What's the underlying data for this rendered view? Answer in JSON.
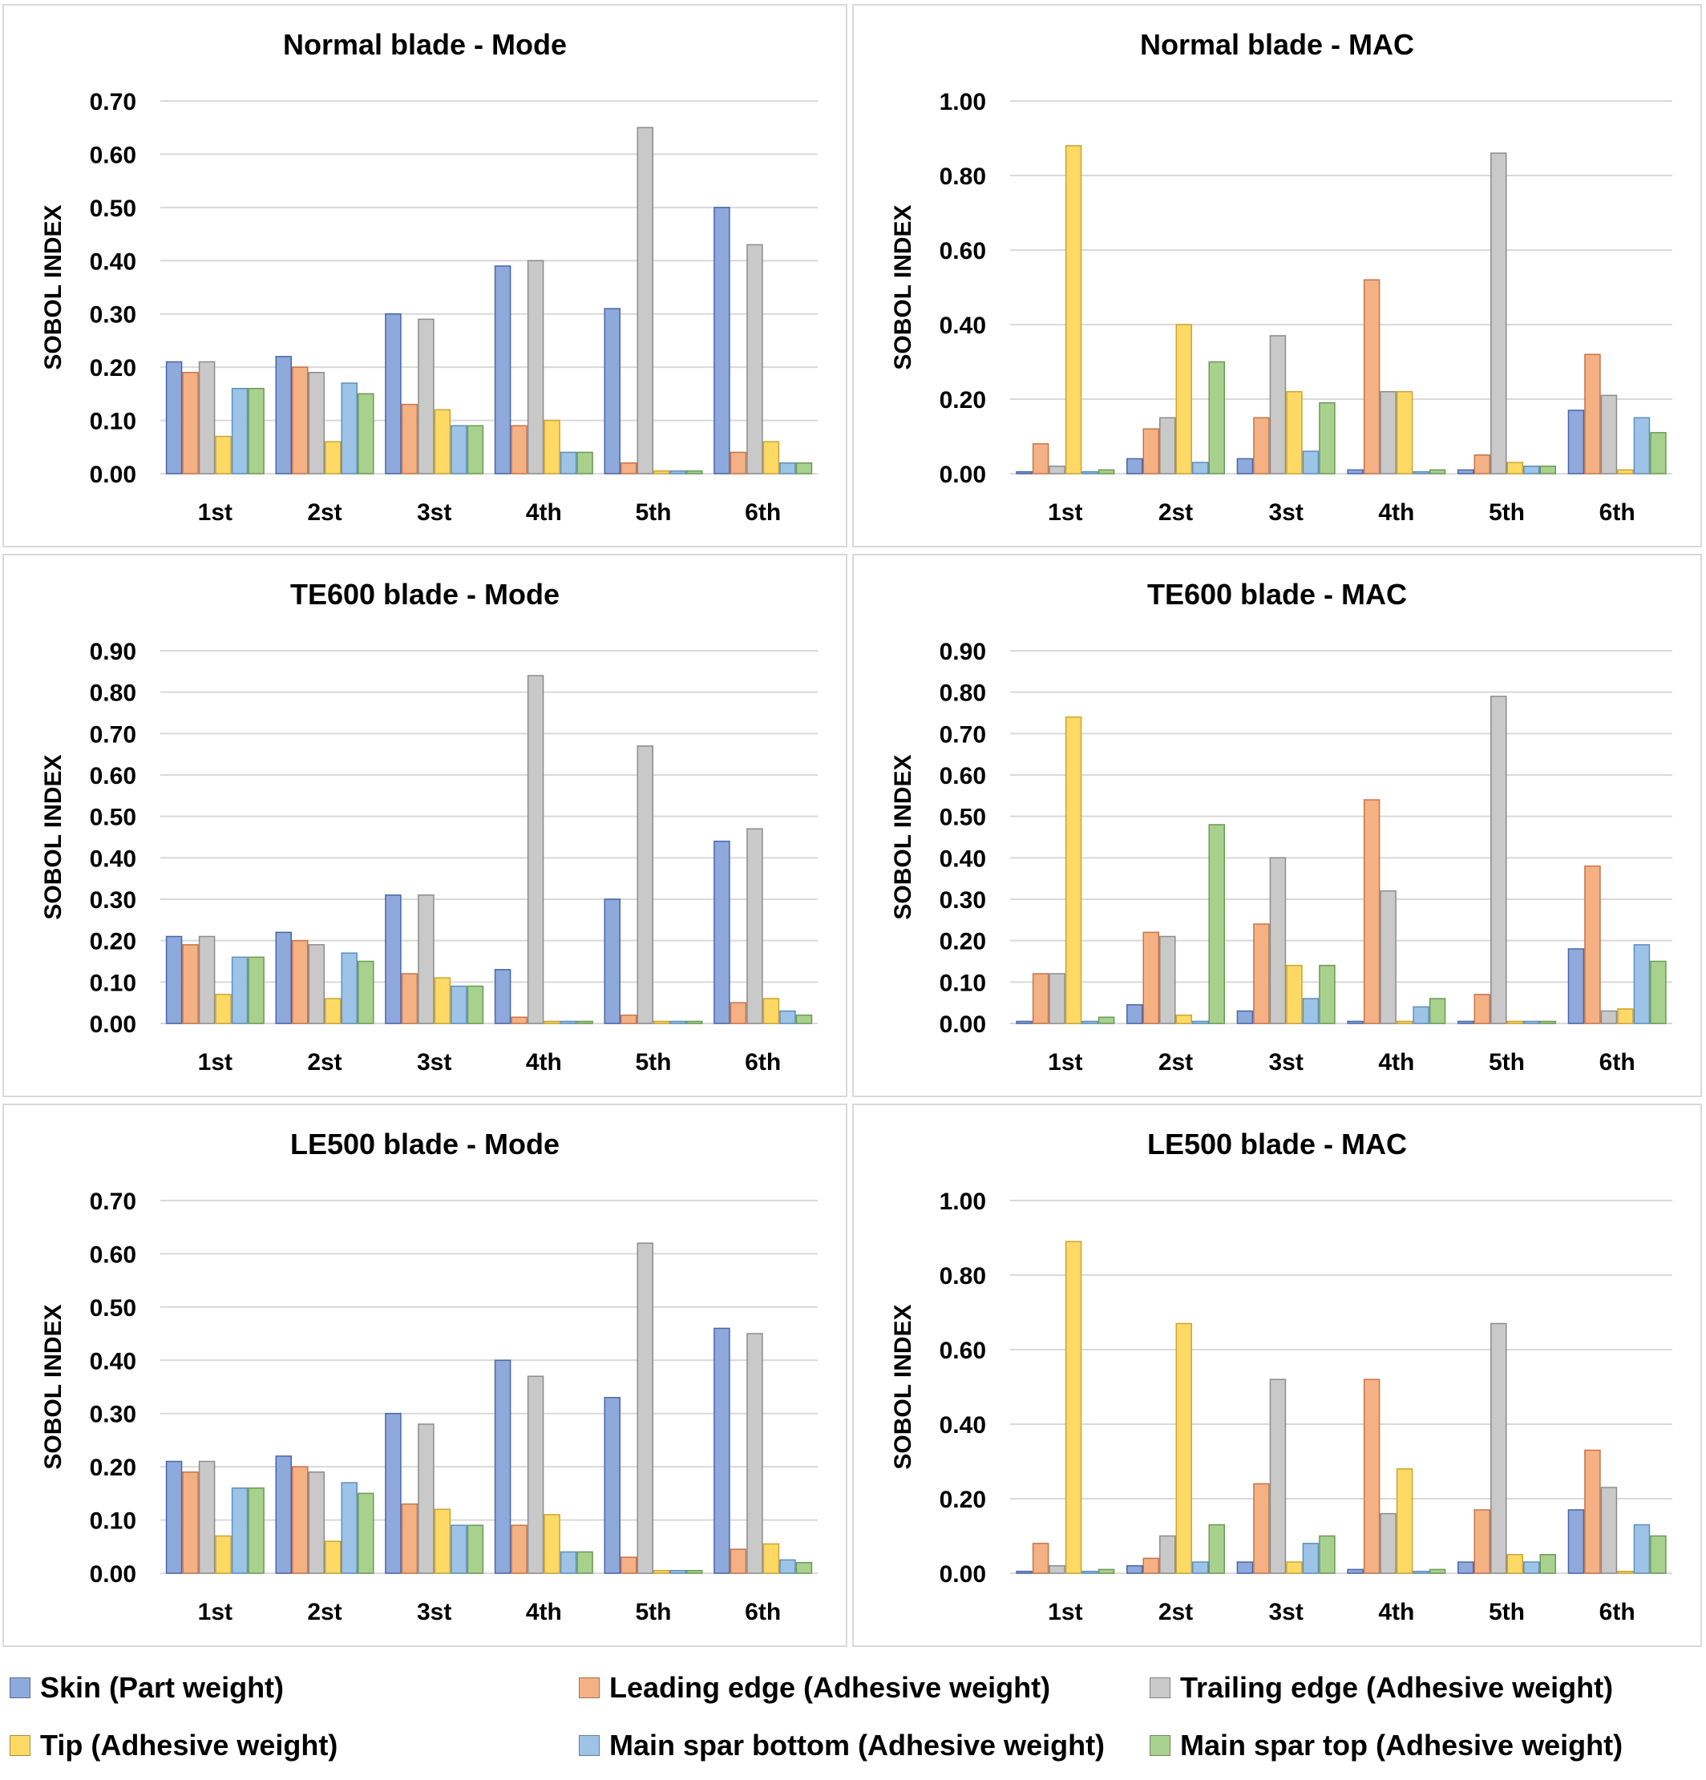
{
  "series_names": [
    "Skin (Part weight)",
    "Leading edge (Adhesive weight)",
    "Trailing edge (Adhesive weight)",
    "Tip (Adhesive weight)",
    "Main spar bottom (Adhesive weight)",
    "Main spar top (Adhesive weight)"
  ],
  "colors": [
    "#8ea9db",
    "#f4b183",
    "#c9c9c9",
    "#ffd966",
    "#9dc3e6",
    "#a9d18e"
  ],
  "chart_data": [
    {
      "type": "bar",
      "title": "Normal blade - Mode",
      "ylabel": "SOBOL INDEX",
      "categories": [
        "1st",
        "2st",
        "3st",
        "4th",
        "5th",
        "6th"
      ],
      "ylim": [
        0,
        0.7
      ],
      "yticks": [
        "0.00",
        "0.10",
        "0.20",
        "0.30",
        "0.40",
        "0.50",
        "0.60",
        "0.70"
      ],
      "series": [
        {
          "name": "Skin (Part weight)",
          "values": [
            0.21,
            0.22,
            0.3,
            0.39,
            0.31,
            0.5
          ]
        },
        {
          "name": "Leading edge (Adhesive weight)",
          "values": [
            0.19,
            0.2,
            0.13,
            0.09,
            0.02,
            0.04
          ]
        },
        {
          "name": "Trailing edge (Adhesive weight)",
          "values": [
            0.21,
            0.19,
            0.29,
            0.4,
            0.65,
            0.43
          ]
        },
        {
          "name": "Tip (Adhesive weight)",
          "values": [
            0.07,
            0.06,
            0.12,
            0.1,
            0.005,
            0.06
          ]
        },
        {
          "name": "Main spar bottom (Adhesive weight)",
          "values": [
            0.16,
            0.17,
            0.09,
            0.04,
            0.005,
            0.02
          ]
        },
        {
          "name": "Main spar top (Adhesive weight)",
          "values": [
            0.16,
            0.15,
            0.09,
            0.04,
            0.005,
            0.02
          ]
        }
      ]
    },
    {
      "type": "bar",
      "title": "Normal blade - MAC",
      "ylabel": "SOBOL INDEX",
      "categories": [
        "1st",
        "2st",
        "3st",
        "4th",
        "5th",
        "6th"
      ],
      "ylim": [
        0,
        1.0
      ],
      "yticks": [
        "0.00",
        "0.20",
        "0.40",
        "0.60",
        "0.80",
        "1.00"
      ],
      "series": [
        {
          "name": "Skin (Part weight)",
          "values": [
            0.005,
            0.04,
            0.04,
            0.01,
            0.01,
            0.17
          ]
        },
        {
          "name": "Leading edge (Adhesive weight)",
          "values": [
            0.08,
            0.12,
            0.15,
            0.52,
            0.05,
            0.32
          ]
        },
        {
          "name": "Trailing edge (Adhesive weight)",
          "values": [
            0.02,
            0.15,
            0.37,
            0.22,
            0.86,
            0.21
          ]
        },
        {
          "name": "Tip (Adhesive weight)",
          "values": [
            0.88,
            0.4,
            0.22,
            0.22,
            0.03,
            0.01
          ]
        },
        {
          "name": "Main spar bottom (Adhesive weight)",
          "values": [
            0.005,
            0.03,
            0.06,
            0.005,
            0.02,
            0.15
          ]
        },
        {
          "name": "Main spar top (Adhesive weight)",
          "values": [
            0.01,
            0.3,
            0.19,
            0.01,
            0.02,
            0.11
          ]
        }
      ]
    },
    {
      "type": "bar",
      "title": "TE600 blade - Mode",
      "ylabel": "SOBOL INDEX",
      "categories": [
        "1st",
        "2st",
        "3st",
        "4th",
        "5th",
        "6th"
      ],
      "ylim": [
        0,
        0.9
      ],
      "yticks": [
        "0.00",
        "0.10",
        "0.20",
        "0.30",
        "0.40",
        "0.50",
        "0.60",
        "0.70",
        "0.80",
        "0.90"
      ],
      "series": [
        {
          "name": "Skin (Part weight)",
          "values": [
            0.21,
            0.22,
            0.31,
            0.13,
            0.3,
            0.44
          ]
        },
        {
          "name": "Leading edge (Adhesive weight)",
          "values": [
            0.19,
            0.2,
            0.12,
            0.015,
            0.02,
            0.05
          ]
        },
        {
          "name": "Trailing edge (Adhesive weight)",
          "values": [
            0.21,
            0.19,
            0.31,
            0.84,
            0.67,
            0.47
          ]
        },
        {
          "name": "Tip (Adhesive weight)",
          "values": [
            0.07,
            0.06,
            0.11,
            0.005,
            0.005,
            0.06
          ]
        },
        {
          "name": "Main spar bottom (Adhesive weight)",
          "values": [
            0.16,
            0.17,
            0.09,
            0.005,
            0.005,
            0.03
          ]
        },
        {
          "name": "Main spar top (Adhesive weight)",
          "values": [
            0.16,
            0.15,
            0.09,
            0.005,
            0.005,
            0.02
          ]
        }
      ]
    },
    {
      "type": "bar",
      "title": "TE600 blade - MAC",
      "ylabel": "SOBOL INDEX",
      "categories": [
        "1st",
        "2st",
        "3st",
        "4th",
        "5th",
        "6th"
      ],
      "ylim": [
        0,
        0.9
      ],
      "yticks": [
        "0.00",
        "0.10",
        "0.20",
        "0.30",
        "0.40",
        "0.50",
        "0.60",
        "0.70",
        "0.80",
        "0.90"
      ],
      "series": [
        {
          "name": "Skin (Part weight)",
          "values": [
            0.005,
            0.045,
            0.03,
            0.005,
            0.005,
            0.18
          ]
        },
        {
          "name": "Leading edge (Adhesive weight)",
          "values": [
            0.12,
            0.22,
            0.24,
            0.54,
            0.07,
            0.38
          ]
        },
        {
          "name": "Trailing edge (Adhesive weight)",
          "values": [
            0.12,
            0.21,
            0.4,
            0.32,
            0.79,
            0.03
          ]
        },
        {
          "name": "Tip (Adhesive weight)",
          "values": [
            0.74,
            0.02,
            0.14,
            0.005,
            0.005,
            0.035
          ]
        },
        {
          "name": "Main spar bottom (Adhesive weight)",
          "values": [
            0.005,
            0.005,
            0.06,
            0.04,
            0.005,
            0.19
          ]
        },
        {
          "name": "Main spar top (Adhesive weight)",
          "values": [
            0.015,
            0.48,
            0.14,
            0.06,
            0.005,
            0.15
          ]
        }
      ]
    },
    {
      "type": "bar",
      "title": "LE500 blade - Mode",
      "ylabel": "SOBOL INDEX",
      "categories": [
        "1st",
        "2st",
        "3st",
        "4th",
        "5th",
        "6th"
      ],
      "ylim": [
        0,
        0.7
      ],
      "yticks": [
        "0.00",
        "0.10",
        "0.20",
        "0.30",
        "0.40",
        "0.50",
        "0.60",
        "0.70"
      ],
      "series": [
        {
          "name": "Skin (Part weight)",
          "values": [
            0.21,
            0.22,
            0.3,
            0.4,
            0.33,
            0.46
          ]
        },
        {
          "name": "Leading edge (Adhesive weight)",
          "values": [
            0.19,
            0.2,
            0.13,
            0.09,
            0.03,
            0.045
          ]
        },
        {
          "name": "Trailing edge (Adhesive weight)",
          "values": [
            0.21,
            0.19,
            0.28,
            0.37,
            0.62,
            0.45
          ]
        },
        {
          "name": "Tip (Adhesive weight)",
          "values": [
            0.07,
            0.06,
            0.12,
            0.11,
            0.005,
            0.055
          ]
        },
        {
          "name": "Main spar bottom (Adhesive weight)",
          "values": [
            0.16,
            0.17,
            0.09,
            0.04,
            0.005,
            0.025
          ]
        },
        {
          "name": "Main spar top (Adhesive weight)",
          "values": [
            0.16,
            0.15,
            0.09,
            0.04,
            0.005,
            0.02
          ]
        }
      ]
    },
    {
      "type": "bar",
      "title": "LE500 blade - MAC",
      "ylabel": "SOBOL INDEX",
      "categories": [
        "1st",
        "2st",
        "3st",
        "4th",
        "5th",
        "6th"
      ],
      "ylim": [
        0,
        1.0
      ],
      "yticks": [
        "0.00",
        "0.20",
        "0.40",
        "0.60",
        "0.80",
        "1.00"
      ],
      "series": [
        {
          "name": "Skin (Part weight)",
          "values": [
            0.005,
            0.02,
            0.03,
            0.01,
            0.03,
            0.17
          ]
        },
        {
          "name": "Leading edge (Adhesive weight)",
          "values": [
            0.08,
            0.04,
            0.24,
            0.52,
            0.17,
            0.33
          ]
        },
        {
          "name": "Trailing edge (Adhesive weight)",
          "values": [
            0.02,
            0.1,
            0.52,
            0.16,
            0.67,
            0.23
          ]
        },
        {
          "name": "Tip (Adhesive weight)",
          "values": [
            0.89,
            0.67,
            0.03,
            0.28,
            0.05,
            0.005
          ]
        },
        {
          "name": "Main spar bottom (Adhesive weight)",
          "values": [
            0.005,
            0.03,
            0.08,
            0.005,
            0.03,
            0.13
          ]
        },
        {
          "name": "Main spar top (Adhesive weight)",
          "values": [
            0.01,
            0.13,
            0.1,
            0.01,
            0.05,
            0.1
          ]
        }
      ]
    }
  ]
}
